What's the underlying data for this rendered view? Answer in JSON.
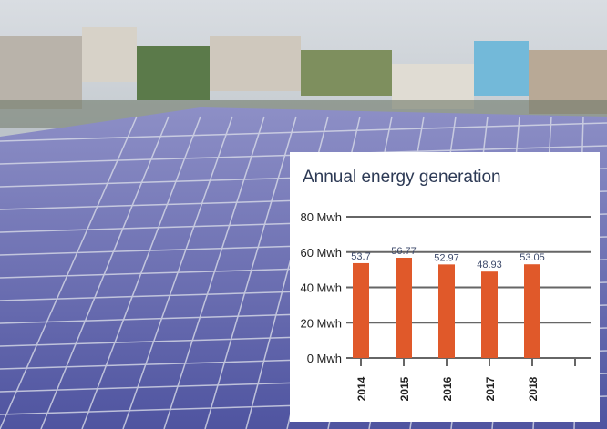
{
  "chart_data": {
    "type": "bar",
    "title": "Annual energy generation",
    "categories": [
      "2014",
      "2015",
      "2016",
      "2017",
      "2018"
    ],
    "values": [
      53.7,
      56.77,
      52.97,
      48.93,
      53.05
    ],
    "value_labels": [
      "53.7",
      "56.77",
      "52.97",
      "48.93",
      "53.05"
    ],
    "yticks": [
      0,
      20,
      40,
      60,
      80
    ],
    "ytick_labels": [
      "0 Mwh",
      "20 Mwh",
      "40 Mwh",
      "60 Mwh",
      "80 Mwh"
    ],
    "ylim": [
      0,
      80
    ],
    "xlabel": "",
    "ylabel": "",
    "grid": true,
    "bar_color": "#e0592a",
    "label_color": "#3d4a6b"
  }
}
